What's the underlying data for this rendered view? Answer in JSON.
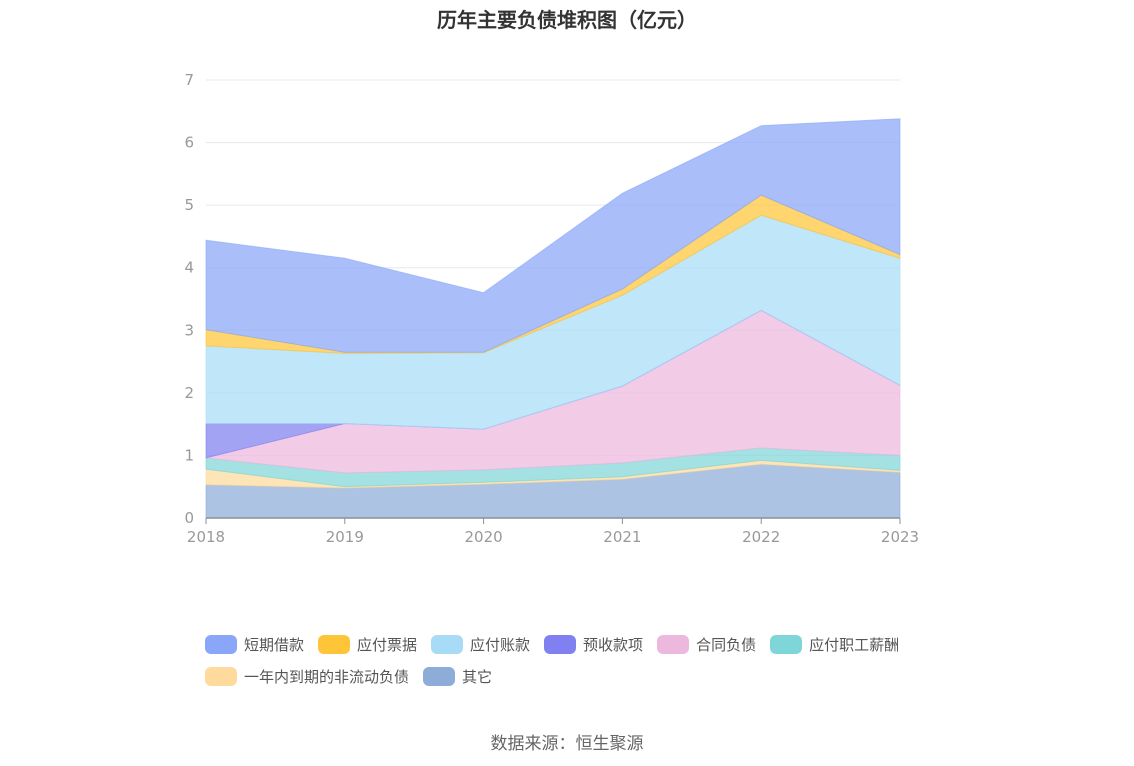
{
  "title": "历年主要负债堆积图（亿元）",
  "source": "数据来源：恒生聚源",
  "chart_data": {
    "type": "area",
    "stacked": true,
    "title": "历年主要负债堆积图（亿元）",
    "xlabel": "",
    "ylabel": "",
    "x": [
      "2018",
      "2019",
      "2020",
      "2021",
      "2022",
      "2023"
    ],
    "ylim": [
      0,
      7
    ],
    "yticks": [
      0,
      1,
      2,
      3,
      4,
      5,
      6,
      7
    ],
    "grid": true,
    "legend_position": "bottom",
    "series": [
      {
        "name": "其它",
        "color": "#8eacd8",
        "values": [
          0.53,
          0.48,
          0.54,
          0.62,
          0.86,
          0.73
        ]
      },
      {
        "name": "一年内到期的非流动负债",
        "color": "#fedb9d",
        "values": [
          0.25,
          0.02,
          0.03,
          0.04,
          0.06,
          0.03
        ]
      },
      {
        "name": "应付职工薪酬",
        "color": "#7fd6d8",
        "values": [
          0.18,
          0.22,
          0.2,
          0.22,
          0.2,
          0.24
        ]
      },
      {
        "name": "合同负债",
        "color": "#edb8de",
        "values": [
          0.0,
          0.79,
          0.65,
          1.23,
          2.2,
          1.12
        ]
      },
      {
        "name": "预收款项",
        "color": "#8080f0",
        "values": [
          0.55,
          0.0,
          0.0,
          0.0,
          0.0,
          0.0
        ]
      },
      {
        "name": "应付账款",
        "color": "#a8dcf6",
        "values": [
          1.24,
          1.12,
          1.22,
          1.45,
          1.52,
          2.03
        ]
      },
      {
        "name": "应付票据",
        "color": "#fec538",
        "values": [
          0.26,
          0.02,
          0.01,
          0.1,
          0.32,
          0.06
        ]
      },
      {
        "name": "短期借款",
        "color": "#89a6f8",
        "values": [
          1.43,
          1.5,
          0.95,
          1.53,
          1.11,
          2.17
        ]
      }
    ]
  },
  "legend": [
    {
      "label": "短期借款",
      "color": "#89a6f8"
    },
    {
      "label": "应付票据",
      "color": "#fec538"
    },
    {
      "label": "应付账款",
      "color": "#a8dcf6"
    },
    {
      "label": "预收款项",
      "color": "#8080f0"
    },
    {
      "label": "合同负债",
      "color": "#edb8de"
    },
    {
      "label": "应付职工薪酬",
      "color": "#7fd6d8"
    },
    {
      "label": "一年内到期的非流动负债",
      "color": "#fedb9d"
    },
    {
      "label": "其它",
      "color": "#8eacd8"
    }
  ]
}
